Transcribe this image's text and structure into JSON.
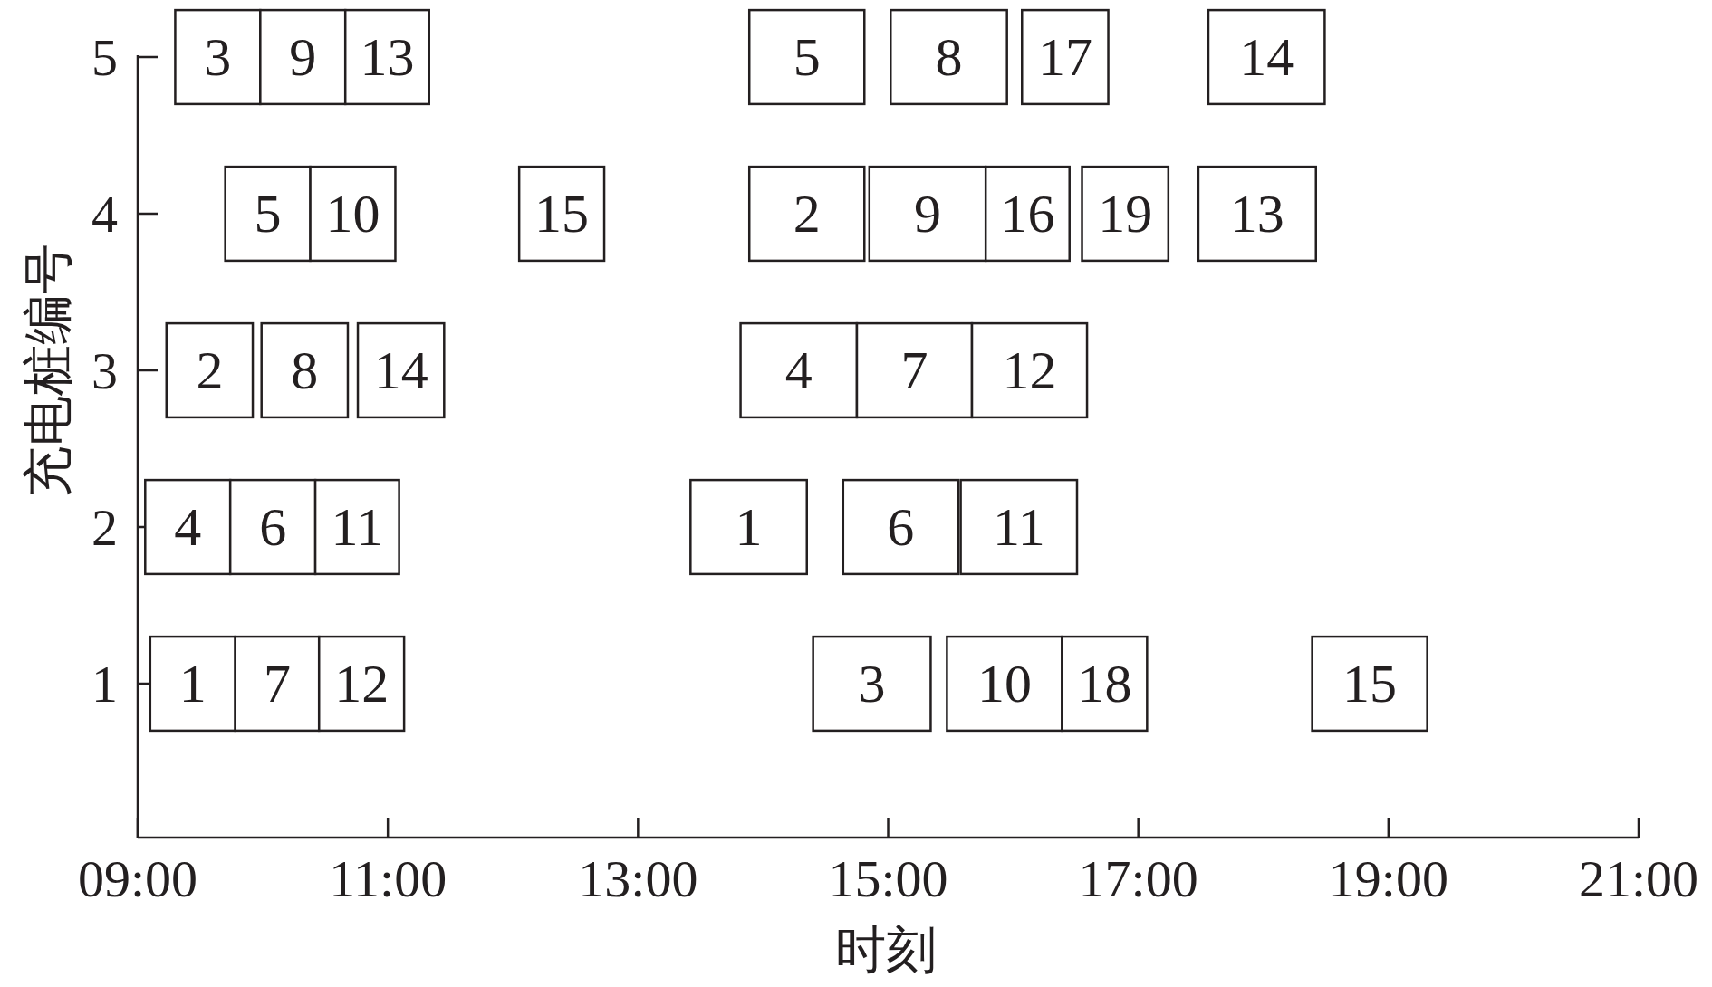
{
  "chart_data": {
    "type": "bar",
    "orientation": "horizontal",
    "xlabel": "时刻",
    "ylabel": "充电桩编号",
    "categories": [
      "5",
      "4",
      "3",
      "2",
      "1"
    ],
    "xlim": [
      9,
      21
    ],
    "xticks": [
      {
        "value": 9,
        "label": "09:00"
      },
      {
        "value": 11,
        "label": "11:00"
      },
      {
        "value": 13,
        "label": "13:00"
      },
      {
        "value": 15,
        "label": "15:00"
      },
      {
        "value": 17,
        "label": "17:00"
      },
      {
        "value": 19,
        "label": "19:00"
      },
      {
        "value": 21,
        "label": "21:00"
      }
    ],
    "series": [
      {
        "color": "#ffffff",
        "base": [
          9.3,
          9.7,
          9.23,
          9.06,
          9.1
        ],
        "values": [
          0.68,
          0.68,
          0.69,
          0.68,
          0.68
        ]
      },
      {
        "color": "#ffffff",
        "base": [
          9.98,
          10.38,
          9.99,
          9.74,
          9.78
        ],
        "values": [
          0.68,
          0.68,
          0.69,
          0.68,
          0.67
        ]
      },
      {
        "color": "#ffffff",
        "base": [
          10.66,
          12.05,
          10.76,
          10.42,
          10.45
        ],
        "values": [
          0.67,
          0.68,
          0.69,
          0.67,
          0.68
        ]
      },
      {
        "color": "#ffffff",
        "base": [
          13.89,
          13.89,
          13.82,
          13.42,
          14.4
        ],
        "values": [
          0.92,
          0.92,
          0.93,
          0.93,
          0.94
        ]
      },
      {
        "color": "#ffffff",
        "base": [
          15.02,
          14.85,
          14.75,
          14.64,
          15.47
        ],
        "values": [
          0.93,
          0.93,
          0.92,
          0.92,
          0.92
        ]
      },
      {
        "color": "#ffffff",
        "base": [
          16.07,
          15.78,
          15.67,
          15.58,
          16.39
        ],
        "values": [
          0.69,
          0.67,
          0.92,
          0.93,
          0.68
        ]
      },
      {
        "color": "#ffffff",
        "base": [
          17.56,
          16.55,
          null,
          null,
          18.39
        ],
        "values": [
          0.93,
          0.69,
          null,
          null,
          0.92
        ]
      },
      {
        "color": "#ffffff",
        "base": [
          null,
          17.48,
          null,
          null,
          null
        ],
        "values": [
          null,
          0.94,
          null,
          null,
          null
        ]
      }
    ],
    "annotations": [
      "3",
      "9",
      "13",
      "5",
      "8",
      "17",
      "14",
      "5",
      "10",
      "15",
      "2",
      "9",
      "16",
      "19",
      "13",
      "2",
      "8",
      "14",
      "4",
      "7",
      "12",
      "4",
      "6",
      "11",
      "1",
      "6",
      "11",
      "1",
      "7",
      "12",
      "3",
      "10",
      "18",
      "15"
    ]
  }
}
